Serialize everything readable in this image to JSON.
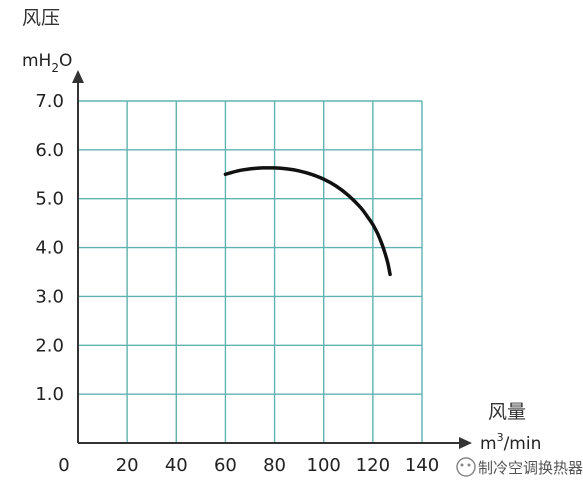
{
  "chart_data": {
    "type": "line",
    "y_title": "风压",
    "y_unit": {
      "base": "mH",
      "sub": "2",
      "tail": "O"
    },
    "x_title": "风量",
    "x_unit": {
      "base": "m",
      "sup": "3",
      "tail": "/min"
    },
    "xlim": [
      0,
      140
    ],
    "ylim": [
      0,
      7.0
    ],
    "x_ticks": [
      "0",
      "20",
      "40",
      "60",
      "80",
      "100",
      "120",
      "140"
    ],
    "y_ticks": [
      "1.0",
      "2.0",
      "3.0",
      "4.0",
      "5.0",
      "6.0",
      "7.0"
    ],
    "grid": true,
    "grid_color": "#5fb3b0",
    "curve_color": "#111111",
    "series": [
      {
        "x": [
          60,
          65,
          70,
          75,
          80,
          85,
          90,
          95,
          100,
          105,
          110,
          115,
          118,
          120,
          122,
          124,
          126,
          127
        ],
        "y": [
          5.5,
          5.57,
          5.61,
          5.63,
          5.63,
          5.61,
          5.57,
          5.5,
          5.4,
          5.26,
          5.07,
          4.82,
          4.62,
          4.47,
          4.28,
          4.03,
          3.7,
          3.45
        ]
      }
    ]
  },
  "watermark": "制冷空调换热器"
}
